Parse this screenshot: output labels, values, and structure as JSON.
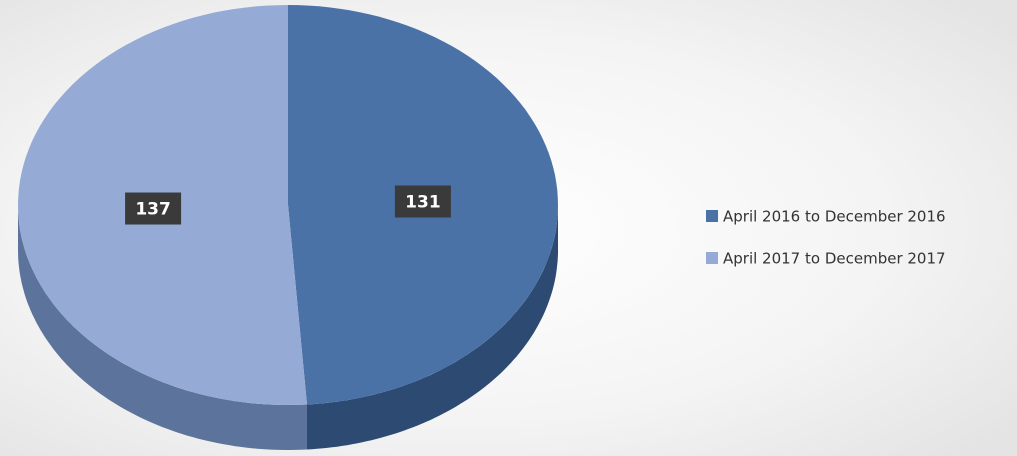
{
  "chart_data": {
    "type": "pie",
    "categories": [
      "April 2016 to December 2016",
      "April 2017 to December 2017"
    ],
    "values": [
      131,
      137
    ],
    "colors": [
      "#4a72a6",
      "#95abd5"
    ],
    "side_colors": [
      "#2c4a72",
      "#5c739c"
    ],
    "legend": "right"
  }
}
